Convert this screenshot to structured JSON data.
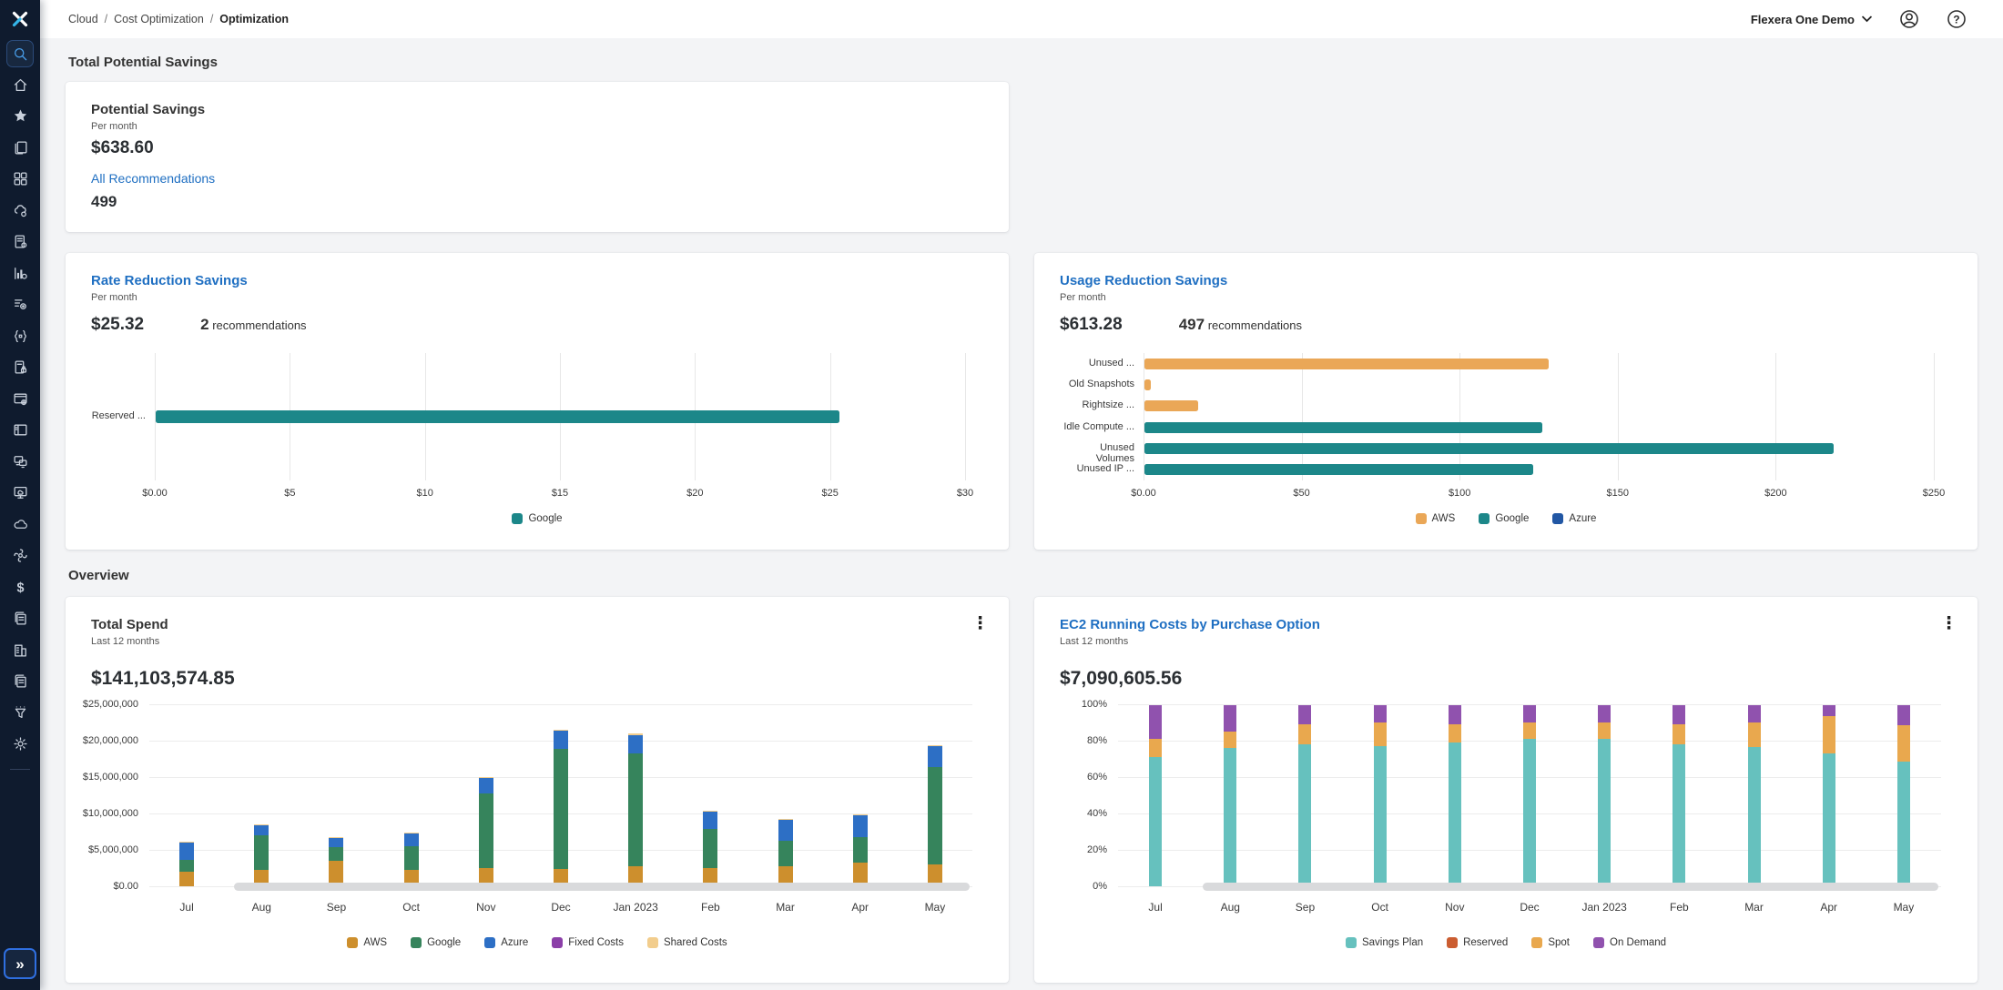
{
  "topbar": {
    "breadcrumb": [
      "Cloud",
      "Cost Optimization",
      "Optimization"
    ],
    "tenant_menu": "Flexera One Demo",
    "icons": [
      "account",
      "help"
    ]
  },
  "sidebar": {
    "logo": "flexera-logo",
    "active_item": "search",
    "items": [
      "search",
      "home",
      "favorites",
      "catalog",
      "dashboards",
      "cloud-services",
      "policy-doc",
      "analytics",
      "automation",
      "api",
      "secure-doc",
      "web-app",
      "panel",
      "devices",
      "virtual-desktop",
      "cloud",
      "optimization",
      "spend",
      "documents",
      "organization",
      "reports",
      "filter",
      "settings"
    ],
    "expand_label": "»"
  },
  "headings": {
    "savings_section": "Total Potential Savings",
    "overview_section": "Overview"
  },
  "controls": {
    "kebab": "⋮"
  },
  "potential_card": {
    "title": "Potential Savings",
    "period": "Per month",
    "amount": "$638.60",
    "link": "All Recommendations",
    "count": "499"
  },
  "rate_card": {
    "title": "Rate Reduction Savings",
    "period": "Per month",
    "amount": "$25.32",
    "rec_count": "2",
    "rec_label": "recommendations",
    "chart_data": {
      "type": "bar",
      "categories": [
        "Reserved ..."
      ],
      "bars": [
        {
          "category": "Reserved ...",
          "value": 25.32,
          "series": "Google",
          "color": "#1c8789"
        }
      ],
      "xmax": 30,
      "xticks": [
        "$0.00",
        "$5",
        "$10",
        "$15",
        "$20",
        "$25",
        "$30"
      ],
      "legend": [
        {
          "label": "Google",
          "color": "#1c8789"
        }
      ],
      "legend_position": "bottom",
      "grid": "vertical"
    }
  },
  "usage_card": {
    "title": "Usage Reduction Savings",
    "period": "Per month",
    "amount": "$613.28",
    "rec_count": "497",
    "rec_label": "recommendations",
    "chart_data": {
      "type": "bar",
      "categories": [
        "Unused ...",
        "Old Snapshots",
        "Rightsize ...",
        "Idle Compute ...",
        "Unused Volumes",
        "Unused IP ..."
      ],
      "bars": [
        {
          "category": "Unused ...",
          "value": 128,
          "series": "AWS",
          "color": "#eaa757"
        },
        {
          "category": "Old Snapshots",
          "value": 2,
          "series": "AWS",
          "color": "#eaa757"
        },
        {
          "category": "Rightsize ...",
          "value": 17,
          "series": "AWS",
          "color": "#eaa757"
        },
        {
          "category": "Idle Compute ...",
          "value": 126,
          "series": "Google",
          "color": "#1c8789"
        },
        {
          "category": "Unused Volumes",
          "value": 218,
          "series": "Google",
          "color": "#1c8789"
        },
        {
          "category": "Unused IP ...",
          "value": 123,
          "series": "Google",
          "color": "#1c8789"
        }
      ],
      "xmax": 250,
      "xticks": [
        "$0.00",
        "$50",
        "$100",
        "$150",
        "$200",
        "$250"
      ],
      "legend": [
        {
          "label": "AWS",
          "color": "#eaa757"
        },
        {
          "label": "Google",
          "color": "#1c8789"
        },
        {
          "label": "Azure",
          "color": "#2257a4"
        }
      ],
      "legend_position": "bottom",
      "grid": "vertical"
    }
  },
  "total_spend_card": {
    "title": "Total Spend",
    "period": "Last 12 months",
    "amount": "$141,103,574.85",
    "chart_data": {
      "type": "stacked-column",
      "categories": [
        "Jul",
        "Aug",
        "Sep",
        "Oct",
        "Nov",
        "Dec",
        "Jan 2023",
        "Feb",
        "Mar",
        "Apr",
        "May"
      ],
      "values_in": "millions USD (estimated from axis)",
      "series": [
        {
          "name": "AWS",
          "color": "#cd8f2d",
          "values": [
            2.0,
            2.2,
            3.5,
            2.3,
            2.5,
            2.4,
            2.7,
            2.5,
            2.8,
            3.2,
            3.0
          ]
        },
        {
          "name": "Google",
          "color": "#36845c",
          "values": [
            1.6,
            4.8,
            1.9,
            3.2,
            10.3,
            16.5,
            15.6,
            5.4,
            3.4,
            3.6,
            13.4
          ]
        },
        {
          "name": "Azure",
          "color": "#2d6fc5",
          "values": [
            2.4,
            1.4,
            1.3,
            1.7,
            2.1,
            2.5,
            2.5,
            2.4,
            2.9,
            3.0,
            2.9
          ]
        },
        {
          "name": "Fixed Costs",
          "color": "#8b3fa8",
          "values": [
            0,
            0,
            0,
            0,
            0,
            0,
            0,
            0,
            0,
            0,
            0
          ]
        },
        {
          "name": "Shared Costs",
          "color": "#f2cd8d",
          "values": [
            0.15,
            0.1,
            0.1,
            0.12,
            0.15,
            0.15,
            0.15,
            0.12,
            0.1,
            0.08,
            0.12
          ]
        }
      ],
      "ymax": 25,
      "yticks": [
        "$0.00",
        "$5,000,000",
        "$10,000,000",
        "$15,000,000",
        "$20,000,000",
        "$25,000,000"
      ],
      "legend_position": "bottom",
      "grid": "horizontal",
      "scrollbar": true
    }
  },
  "ec2_card": {
    "title": "EC2 Running Costs by Purchase Option",
    "period": "Last 12 months",
    "amount": "$7,090,605.56",
    "chart_data": {
      "type": "stacked-column-percent",
      "categories": [
        "Jul",
        "Aug",
        "Sep",
        "Oct",
        "Nov",
        "Dec",
        "Jan 2023",
        "Feb",
        "Mar",
        "Apr",
        "May"
      ],
      "values_in": "percent of monthly cost (estimated)",
      "series": [
        {
          "name": "Savings Plan",
          "color": "#66c1be",
          "values": [
            71,
            76,
            78,
            77,
            79,
            81,
            81,
            78,
            76.5,
            73,
            68.5
          ]
        },
        {
          "name": "Reserved",
          "color": "#cb5d31",
          "values": [
            0,
            0,
            0,
            0,
            0,
            0,
            0,
            0,
            0,
            0,
            0
          ]
        },
        {
          "name": "Spot",
          "color": "#e9a84e",
          "values": [
            10,
            9,
            11,
            13,
            10,
            9,
            9,
            11,
            13.5,
            20.5,
            20
          ]
        },
        {
          "name": "On Demand",
          "color": "#9052ae",
          "values": [
            18.5,
            14.5,
            10.5,
            9.5,
            10.5,
            9.5,
            9.5,
            10.5,
            9.5,
            6,
            11
          ]
        }
      ],
      "ymax": 100,
      "yticks": [
        "0%",
        "20%",
        "40%",
        "60%",
        "80%",
        "100%"
      ],
      "legend_position": "bottom",
      "grid": "horizontal",
      "scrollbar": true
    }
  }
}
